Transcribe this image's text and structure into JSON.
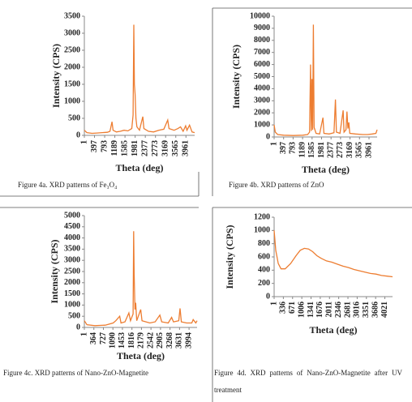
{
  "chart_data": [
    {
      "type": "line",
      "y_label": "Intensity (CPS)",
      "x_label": "Theta (deg)",
      "caption": "Figure 4a.  XRD patterns of Fe₃O₄",
      "color": "#ed7d31",
      "xlim": [
        1,
        4300
      ],
      "xticks": [
        1,
        397,
        793,
        1189,
        1585,
        1981,
        2377,
        2773,
        3169,
        3565,
        3961
      ],
      "ylim": [
        0,
        3500
      ],
      "yticks": [
        0,
        500,
        1000,
        1500,
        2000,
        2500,
        3000,
        3500
      ],
      "x": [
        1,
        100,
        300,
        500,
        700,
        900,
        1000,
        1080,
        1120,
        1250,
        1400,
        1550,
        1700,
        1850,
        1900,
        1930,
        1950,
        1980,
        2010,
        2050,
        2150,
        2280,
        2320,
        2500,
        2700,
        2900,
        3100,
        3250,
        3300,
        3500,
        3650,
        3750,
        3850,
        3950,
        4000,
        4100,
        4200,
        4300
      ],
      "values": [
        150,
        80,
        60,
        70,
        80,
        90,
        120,
        400,
        150,
        100,
        120,
        150,
        130,
        200,
        600,
        3250,
        1500,
        1200,
        500,
        250,
        150,
        550,
        200,
        120,
        100,
        150,
        180,
        450,
        200,
        150,
        200,
        250,
        120,
        280,
        150,
        300,
        100,
        80
      ]
    },
    {
      "type": "line",
      "y_label": "Intensity (CPS)",
      "x_label": "Theta (deg)",
      "caption": "Figure 4b.  XRD patterns of ZnO",
      "color": "#ed7d31",
      "xlim": [
        1,
        4300
      ],
      "xticks": [
        1,
        397,
        793,
        1189,
        1585,
        1981,
        2377,
        2773,
        3169,
        3565,
        3961
      ],
      "ylim": [
        0,
        10000
      ],
      "yticks": [
        0,
        1000,
        2000,
        3000,
        4000,
        5000,
        6000,
        7000,
        8000,
        9000,
        10000
      ],
      "x": [
        1,
        50,
        150,
        400,
        800,
        1200,
        1400,
        1480,
        1520,
        1550,
        1580,
        1610,
        1640,
        1670,
        1750,
        1900,
        2040,
        2080,
        2300,
        2500,
        2560,
        2600,
        2750,
        2880,
        2920,
        3000,
        3040,
        3080,
        3120,
        3160,
        3400,
        3700,
        3900,
        4100,
        4250,
        4300
      ],
      "values": [
        1000,
        400,
        200,
        150,
        120,
        150,
        200,
        400,
        6000,
        500,
        4800,
        600,
        9300,
        800,
        300,
        250,
        1600,
        300,
        250,
        350,
        3100,
        400,
        300,
        2200,
        400,
        600,
        2100,
        700,
        1200,
        300,
        250,
        200,
        200,
        250,
        300,
        600
      ]
    },
    {
      "type": "line",
      "y_label": "Intensity (CPS)",
      "x_label": "Theta (deg)",
      "caption": "Figure 4c.  XRD patterns of Nano-ZnO-Magnetite",
      "color": "#ed7d31",
      "xlim": [
        1,
        4300
      ],
      "xticks": [
        1,
        364,
        727,
        1090,
        1453,
        1816,
        2179,
        2542,
        2905,
        3268,
        3631,
        3994
      ],
      "ylim": [
        0,
        5000
      ],
      "yticks": [
        0,
        500,
        1000,
        1500,
        2000,
        2500,
        3000,
        3500,
        4000,
        4500,
        5000
      ],
      "x": [
        1,
        100,
        400,
        800,
        1100,
        1200,
        1350,
        1400,
        1550,
        1700,
        1760,
        1860,
        1880,
        1900,
        1930,
        1960,
        2000,
        2150,
        2200,
        2500,
        2700,
        2880,
        2950,
        3200,
        3330,
        3400,
        3600,
        3650,
        3700,
        3900,
        4100,
        4150,
        4250,
        4300
      ],
      "values": [
        300,
        120,
        80,
        100,
        200,
        300,
        500,
        200,
        250,
        650,
        300,
        600,
        4300,
        2400,
        800,
        1100,
        300,
        800,
        300,
        200,
        250,
        550,
        250,
        200,
        450,
        250,
        300,
        850,
        250,
        200,
        200,
        350,
        200,
        300
      ]
    },
    {
      "type": "line",
      "y_label": "Intensity (CPS)",
      "x_label": "Theta (deg)",
      "caption": "Figure 4d.  XRD patterns of Nano-ZnO-Magnetite after UV treatment",
      "color": "#ed7d31",
      "xlim": [
        1,
        4300
      ],
      "xticks": [
        1,
        336,
        671,
        1006,
        1341,
        1676,
        2011,
        2346,
        2681,
        3016,
        3351,
        3686,
        4021
      ],
      "ylim": [
        0,
        1200
      ],
      "yticks": [
        0,
        200,
        400,
        600,
        800,
        1000,
        1200
      ],
      "x": [
        1,
        60,
        150,
        250,
        400,
        600,
        800,
        950,
        1100,
        1250,
        1400,
        1550,
        1700,
        1900,
        2100,
        2300,
        2500,
        2700,
        2900,
        3100,
        3300,
        3500,
        3700,
        3900,
        4100,
        4300
      ],
      "values": [
        1000,
        700,
        500,
        420,
        420,
        500,
        620,
        700,
        730,
        720,
        680,
        620,
        580,
        540,
        520,
        490,
        460,
        440,
        410,
        390,
        370,
        350,
        340,
        320,
        310,
        300
      ]
    }
  ]
}
